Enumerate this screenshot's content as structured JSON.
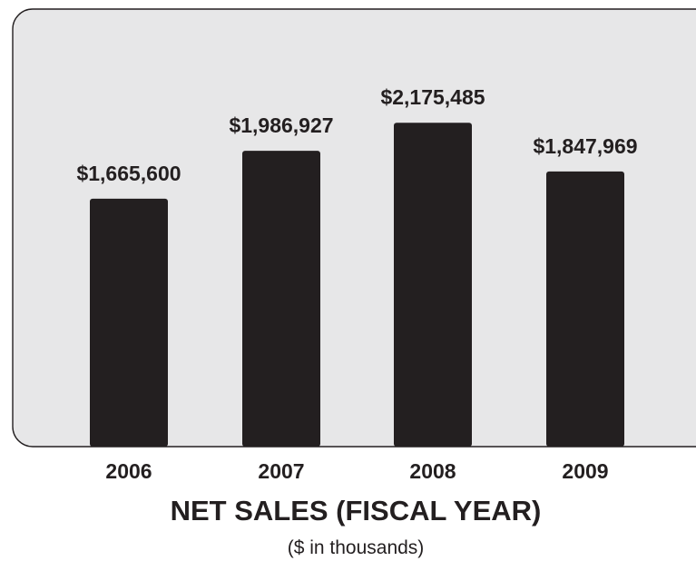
{
  "chart_data": {
    "type": "bar",
    "title": "NET SALES (FISCAL YEAR)",
    "subtitle": "($ in thousands)",
    "categories": [
      "2006",
      "2007",
      "2008",
      "2009"
    ],
    "values": [
      1665600,
      1986927,
      2175485,
      1847969
    ],
    "value_labels": [
      "$1,665,600",
      "$1,986,927",
      "$2,175,485",
      "$1,847,969"
    ],
    "xlabel": "",
    "ylabel": "",
    "grid": false,
    "legend": "none"
  },
  "colors": {
    "panel": "#e7e7e8",
    "bar": "#231f20",
    "text": "#231f20"
  }
}
